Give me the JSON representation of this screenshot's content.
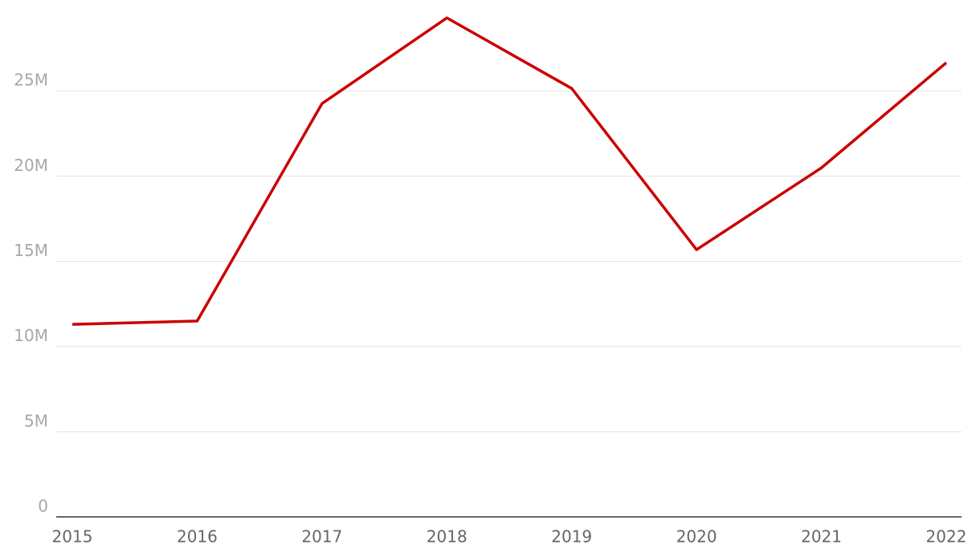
{
  "chart_data": {
    "type": "line",
    "x": [
      2015,
      2016,
      2017,
      2018,
      2019,
      2020,
      2021,
      2022
    ],
    "series": [
      {
        "name": null,
        "color": "#cc0000",
        "values": [
          11300000,
          11490000,
          24250000,
          29280000,
          25140000,
          15680000,
          20480000,
          26650000
        ]
      }
    ],
    "xlim": [
      2015,
      2022
    ],
    "xticks": [
      2015,
      2016,
      2017,
      2018,
      2019,
      2020,
      2021,
      2022
    ],
    "ylim": [
      0,
      30000000
    ],
    "yticks": [
      0,
      {
        "value": 5000000,
        "label": "5M"
      },
      {
        "value": 10000000,
        "label": "10M"
      },
      {
        "value": 15000000,
        "label": "15M"
      },
      {
        "value": 20000000,
        "label": "20M"
      },
      {
        "value": 25000000,
        "label": "25M"
      }
    ],
    "grid": true
  }
}
